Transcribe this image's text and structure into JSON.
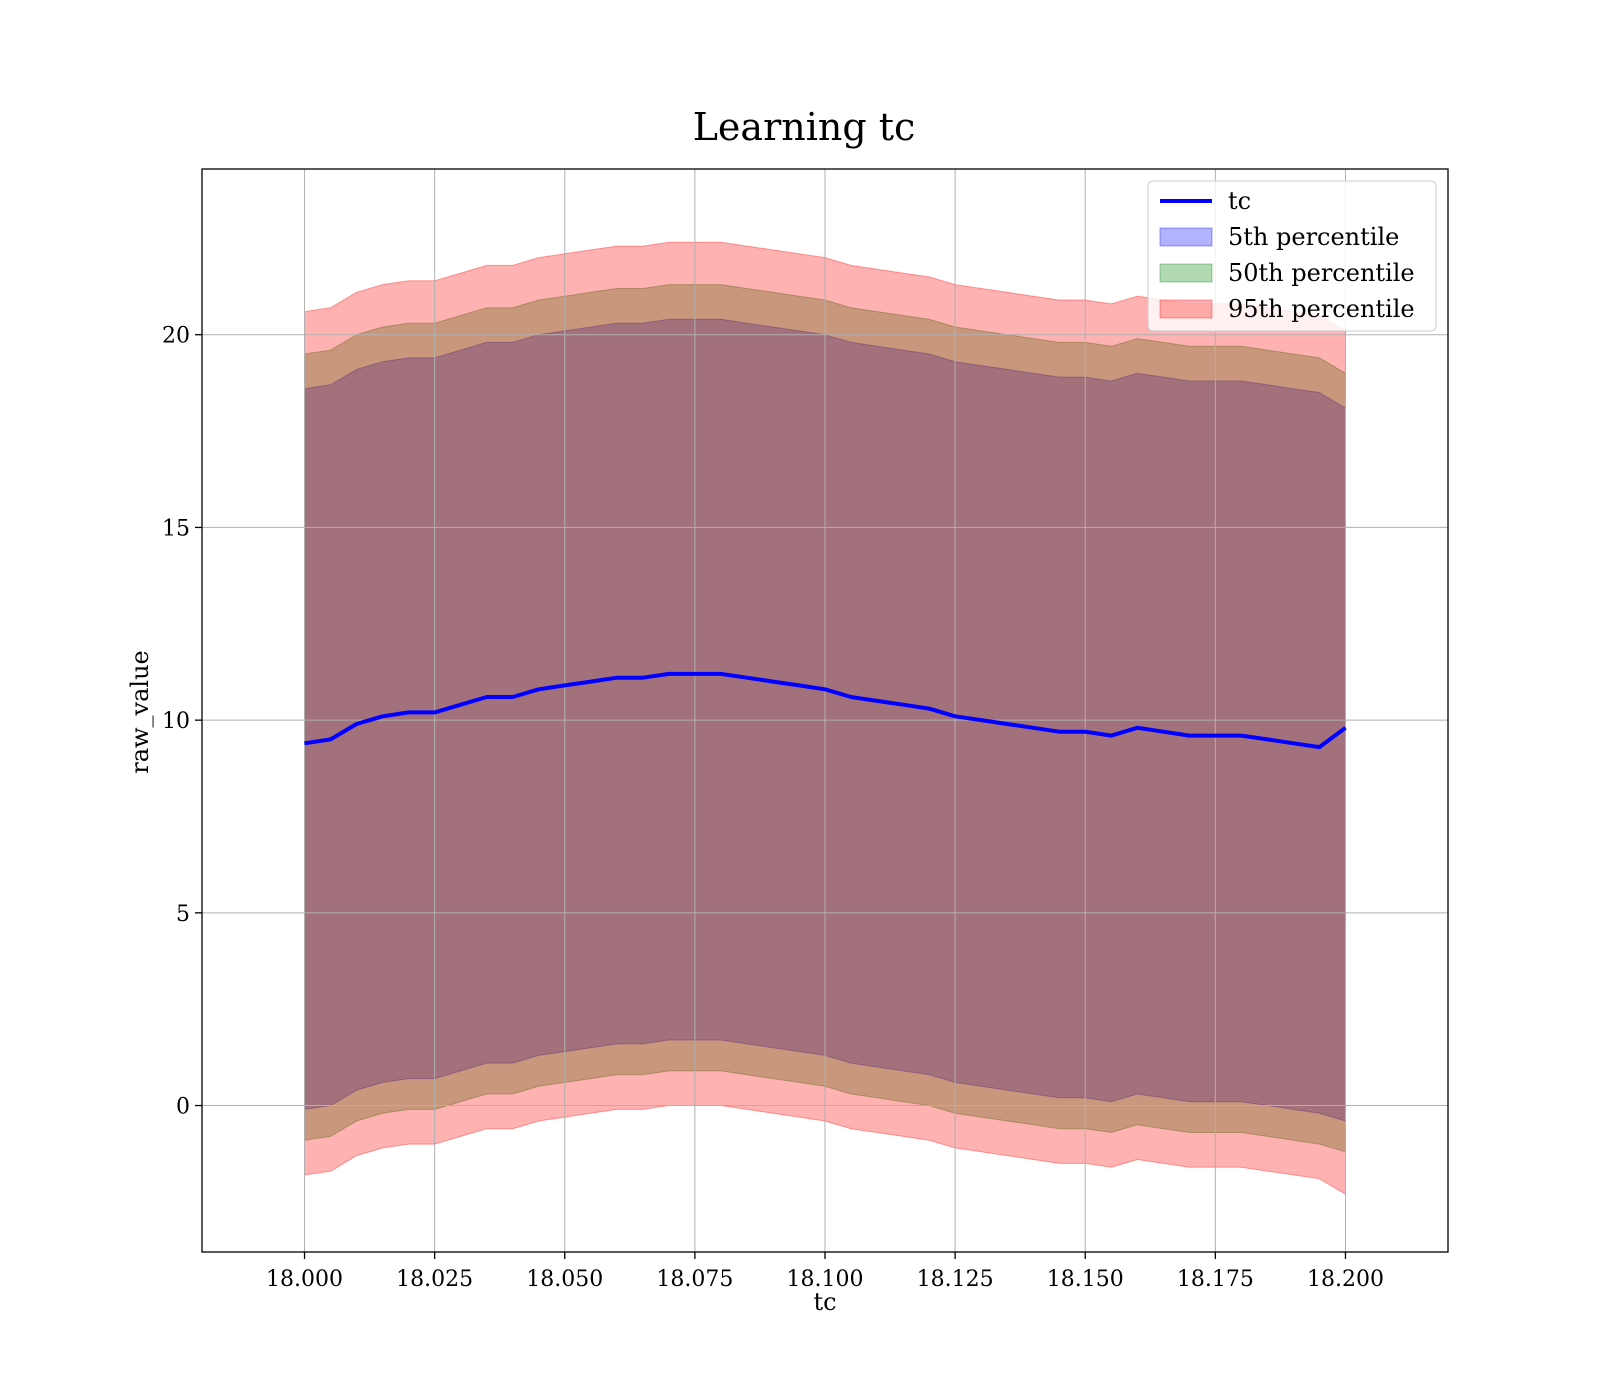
{
  "chart_data": {
    "type": "area",
    "title": "Learning tc",
    "xlabel": "tc",
    "ylabel": "raw_value",
    "xlim": [
      17.9803,
      18.2197
    ],
    "ylim": [
      -3.8,
      24.3
    ],
    "x_ticks": [
      {
        "value": 18.0,
        "label": "18.000"
      },
      {
        "value": 18.025,
        "label": "18.025"
      },
      {
        "value": 18.05,
        "label": "18.050"
      },
      {
        "value": 18.075,
        "label": "18.075"
      },
      {
        "value": 18.1,
        "label": "18.100"
      },
      {
        "value": 18.125,
        "label": "18.125"
      },
      {
        "value": 18.15,
        "label": "18.150"
      },
      {
        "value": 18.175,
        "label": "18.175"
      },
      {
        "value": 18.2,
        "label": "18.200"
      }
    ],
    "y_ticks": [
      {
        "value": 0,
        "label": "0"
      },
      {
        "value": 5,
        "label": "5"
      },
      {
        "value": 10,
        "label": "10"
      },
      {
        "value": 15,
        "label": "15"
      },
      {
        "value": 20,
        "label": "20"
      }
    ],
    "grid": true,
    "legend_position": "top-right",
    "colors": {
      "tc": "#0000ff",
      "p5": "#0000ff",
      "p50": "#008000",
      "p95": "#ff0000"
    },
    "series": [
      {
        "name": "tc",
        "kind": "line",
        "x": [
          18.0,
          18.005,
          18.01,
          18.015,
          18.02,
          18.025,
          18.03,
          18.035,
          18.04,
          18.045,
          18.05,
          18.055,
          18.06,
          18.065,
          18.07,
          18.075,
          18.08,
          18.085,
          18.09,
          18.095,
          18.1,
          18.105,
          18.11,
          18.115,
          18.12,
          18.125,
          18.13,
          18.135,
          18.14,
          18.145,
          18.15,
          18.155,
          18.16,
          18.165,
          18.17,
          18.175,
          18.18,
          18.185,
          18.19,
          18.195,
          18.2
        ],
        "y": [
          9.4,
          9.5,
          9.9,
          10.1,
          10.2,
          10.2,
          10.4,
          10.6,
          10.6,
          10.8,
          10.9,
          11.0,
          11.1,
          11.1,
          11.2,
          11.2,
          11.2,
          11.1,
          11.0,
          10.9,
          10.8,
          10.6,
          10.5,
          10.4,
          10.3,
          10.1,
          10.0,
          9.9,
          9.8,
          9.7,
          9.7,
          9.6,
          9.8,
          9.7,
          9.6,
          9.6,
          9.6,
          9.5,
          9.4,
          9.3,
          9.8
        ]
      },
      {
        "name": "5th percentile",
        "kind": "band",
        "x": [
          18.0,
          18.005,
          18.01,
          18.015,
          18.02,
          18.025,
          18.03,
          18.035,
          18.04,
          18.045,
          18.05,
          18.055,
          18.06,
          18.065,
          18.07,
          18.075,
          18.08,
          18.085,
          18.09,
          18.095,
          18.1,
          18.105,
          18.11,
          18.115,
          18.12,
          18.125,
          18.13,
          18.135,
          18.14,
          18.145,
          18.15,
          18.155,
          18.16,
          18.165,
          18.17,
          18.175,
          18.18,
          18.185,
          18.19,
          18.195,
          18.2
        ],
        "lower": [
          -0.1,
          0.0,
          0.4,
          0.6,
          0.7,
          0.7,
          0.9,
          1.1,
          1.1,
          1.3,
          1.4,
          1.5,
          1.6,
          1.6,
          1.7,
          1.7,
          1.7,
          1.6,
          1.5,
          1.4,
          1.3,
          1.1,
          1.0,
          0.9,
          0.8,
          0.6,
          0.5,
          0.4,
          0.3,
          0.2,
          0.2,
          0.1,
          0.3,
          0.2,
          0.1,
          0.1,
          0.1,
          0.0,
          -0.1,
          -0.2,
          -0.4
        ],
        "upper": [
          18.6,
          18.7,
          19.1,
          19.3,
          19.4,
          19.4,
          19.6,
          19.8,
          19.8,
          20.0,
          20.1,
          20.2,
          20.3,
          20.3,
          20.4,
          20.4,
          20.4,
          20.3,
          20.2,
          20.1,
          20.0,
          19.8,
          19.7,
          19.6,
          19.5,
          19.3,
          19.2,
          19.1,
          19.0,
          18.9,
          18.9,
          18.8,
          19.0,
          18.9,
          18.8,
          18.8,
          18.8,
          18.7,
          18.6,
          18.5,
          18.1
        ]
      },
      {
        "name": "50th percentile",
        "kind": "band",
        "x": [
          18.0,
          18.005,
          18.01,
          18.015,
          18.02,
          18.025,
          18.03,
          18.035,
          18.04,
          18.045,
          18.05,
          18.055,
          18.06,
          18.065,
          18.07,
          18.075,
          18.08,
          18.085,
          18.09,
          18.095,
          18.1,
          18.105,
          18.11,
          18.115,
          18.12,
          18.125,
          18.13,
          18.135,
          18.14,
          18.145,
          18.15,
          18.155,
          18.16,
          18.165,
          18.17,
          18.175,
          18.18,
          18.185,
          18.19,
          18.195,
          18.2
        ],
        "lower": [
          -0.9,
          -0.8,
          -0.4,
          -0.2,
          -0.1,
          -0.1,
          0.1,
          0.3,
          0.3,
          0.5,
          0.6,
          0.7,
          0.8,
          0.8,
          0.9,
          0.9,
          0.9,
          0.8,
          0.7,
          0.6,
          0.5,
          0.3,
          0.2,
          0.1,
          0.0,
          -0.2,
          -0.3,
          -0.4,
          -0.5,
          -0.6,
          -0.6,
          -0.7,
          -0.5,
          -0.6,
          -0.7,
          -0.7,
          -0.7,
          -0.8,
          -0.9,
          -1.0,
          -1.2
        ],
        "upper": [
          19.5,
          19.6,
          20.0,
          20.2,
          20.3,
          20.3,
          20.5,
          20.7,
          20.7,
          20.9,
          21.0,
          21.1,
          21.2,
          21.2,
          21.3,
          21.3,
          21.3,
          21.2,
          21.1,
          21.0,
          20.9,
          20.7,
          20.6,
          20.5,
          20.4,
          20.2,
          20.1,
          20.0,
          19.9,
          19.8,
          19.8,
          19.7,
          19.9,
          19.8,
          19.7,
          19.7,
          19.7,
          19.6,
          19.5,
          19.4,
          19.0
        ]
      },
      {
        "name": "95th percentile",
        "kind": "band",
        "x": [
          18.0,
          18.005,
          18.01,
          18.015,
          18.02,
          18.025,
          18.03,
          18.035,
          18.04,
          18.045,
          18.05,
          18.055,
          18.06,
          18.065,
          18.07,
          18.075,
          18.08,
          18.085,
          18.09,
          18.095,
          18.1,
          18.105,
          18.11,
          18.115,
          18.12,
          18.125,
          18.13,
          18.135,
          18.14,
          18.145,
          18.15,
          18.155,
          18.16,
          18.165,
          18.17,
          18.175,
          18.18,
          18.185,
          18.19,
          18.195,
          18.2
        ],
        "lower": [
          -1.8,
          -1.7,
          -1.3,
          -1.1,
          -1.0,
          -1.0,
          -0.8,
          -0.6,
          -0.6,
          -0.4,
          -0.3,
          -0.2,
          -0.1,
          -0.1,
          0.0,
          0.0,
          0.0,
          -0.1,
          -0.2,
          -0.3,
          -0.4,
          -0.6,
          -0.7,
          -0.8,
          -0.9,
          -1.1,
          -1.2,
          -1.3,
          -1.4,
          -1.5,
          -1.5,
          -1.6,
          -1.4,
          -1.5,
          -1.6,
          -1.6,
          -1.6,
          -1.7,
          -1.8,
          -1.9,
          -2.3
        ],
        "upper": [
          20.6,
          20.7,
          21.1,
          21.3,
          21.4,
          21.4,
          21.6,
          21.8,
          21.8,
          22.0,
          22.1,
          22.2,
          22.3,
          22.3,
          22.4,
          22.4,
          22.4,
          22.3,
          22.2,
          22.1,
          22.0,
          21.8,
          21.7,
          21.6,
          21.5,
          21.3,
          21.2,
          21.1,
          21.0,
          20.9,
          20.9,
          20.8,
          21.0,
          20.9,
          20.8,
          20.8,
          20.8,
          20.7,
          20.6,
          20.5,
          20.1
        ]
      }
    ]
  }
}
